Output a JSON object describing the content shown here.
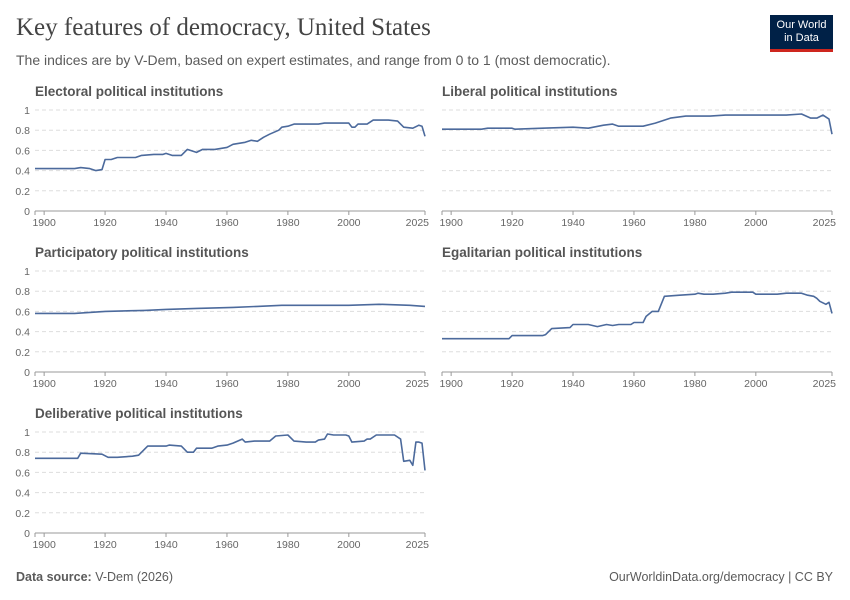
{
  "title": "Key features of democracy, United States",
  "subtitle": "The indices are by V-Dem, based on expert estimates, and range from 0 to 1 (most democratic).",
  "logo": {
    "line1": "Our World",
    "line2": "in Data"
  },
  "footer": {
    "source_label": "Data source:",
    "source": "V-Dem (2026)",
    "right": "OurWorldinData.org/democracy | CC BY"
  },
  "colors": {
    "line": "#4c6a9c",
    "grid": "#dddddd",
    "logo_bg": "#002147",
    "logo_accent": "#ce261e"
  },
  "chart_data": [
    {
      "type": "line",
      "title": "Electoral political institutions",
      "xlim": [
        1897,
        2025
      ],
      "ylim": [
        0,
        1
      ],
      "yticks": [
        "0",
        "0.2",
        "0.4",
        "0.6",
        "0.8",
        "1"
      ],
      "xticks": [
        "1900",
        "1920",
        "1940",
        "1960",
        "1980",
        "2000",
        "2025"
      ],
      "grid": "horizontal dashed",
      "show_y_labels": true,
      "x": [
        1897,
        1910,
        1912,
        1915,
        1917,
        1919,
        1920,
        1922,
        1924,
        1930,
        1932,
        1936,
        1939,
        1940,
        1942,
        1945,
        1947,
        1950,
        1952,
        1956,
        1960,
        1962,
        1966,
        1968,
        1970,
        1972,
        1974,
        1977,
        1978,
        1980,
        1982,
        1990,
        1992,
        2000,
        2001,
        2002,
        2003,
        2006,
        2008,
        2013,
        2016,
        2018,
        2021,
        2023,
        2024,
        2025
      ],
      "y": [
        0.42,
        0.42,
        0.43,
        0.42,
        0.4,
        0.41,
        0.51,
        0.51,
        0.53,
        0.53,
        0.55,
        0.56,
        0.56,
        0.57,
        0.55,
        0.55,
        0.61,
        0.58,
        0.61,
        0.61,
        0.63,
        0.66,
        0.68,
        0.7,
        0.69,
        0.73,
        0.76,
        0.8,
        0.83,
        0.84,
        0.86,
        0.86,
        0.87,
        0.87,
        0.83,
        0.83,
        0.86,
        0.86,
        0.9,
        0.9,
        0.89,
        0.83,
        0.82,
        0.85,
        0.84,
        0.74
      ]
    },
    {
      "type": "line",
      "title": "Liberal political institutions",
      "xlim": [
        1897,
        2025
      ],
      "ylim": [
        0,
        1
      ],
      "yticks": [
        "0",
        "0.2",
        "0.4",
        "0.6",
        "0.8",
        "1"
      ],
      "xticks": [
        "1900",
        "1920",
        "1940",
        "1960",
        "1980",
        "2000",
        "2025"
      ],
      "grid": "horizontal dashed",
      "show_y_labels": false,
      "x": [
        1897,
        1910,
        1912,
        1920,
        1921,
        1930,
        1940,
        1945,
        1950,
        1953,
        1955,
        1963,
        1967,
        1972,
        1977,
        1985,
        1990,
        2000,
        2010,
        2015,
        2018,
        2020,
        2022,
        2024,
        2025
      ],
      "y": [
        0.81,
        0.81,
        0.82,
        0.82,
        0.81,
        0.82,
        0.83,
        0.82,
        0.85,
        0.86,
        0.84,
        0.84,
        0.87,
        0.92,
        0.94,
        0.94,
        0.95,
        0.95,
        0.95,
        0.96,
        0.92,
        0.92,
        0.95,
        0.91,
        0.76
      ]
    },
    {
      "type": "line",
      "title": "Participatory political institutions",
      "xlim": [
        1897,
        2025
      ],
      "ylim": [
        0,
        1
      ],
      "yticks": [
        "0",
        "0.2",
        "0.4",
        "0.6",
        "0.8",
        "1"
      ],
      "xticks": [
        "1900",
        "1920",
        "1940",
        "1960",
        "1980",
        "2000",
        "2025"
      ],
      "grid": "horizontal dashed",
      "show_y_labels": true,
      "x": [
        1897,
        1910,
        1915,
        1920,
        1933,
        1940,
        1950,
        1962,
        1970,
        1978,
        2000,
        2010,
        2020,
        2025
      ],
      "y": [
        0.58,
        0.58,
        0.59,
        0.6,
        0.61,
        0.62,
        0.63,
        0.64,
        0.65,
        0.66,
        0.66,
        0.67,
        0.66,
        0.65
      ]
    },
    {
      "type": "line",
      "title": "Egalitarian political institutions",
      "xlim": [
        1897,
        2025
      ],
      "ylim": [
        0,
        1
      ],
      "yticks": [
        "0",
        "0.2",
        "0.4",
        "0.6",
        "0.8",
        "1"
      ],
      "xticks": [
        "1900",
        "1920",
        "1940",
        "1960",
        "1980",
        "2000",
        "2025"
      ],
      "grid": "horizontal dashed",
      "show_y_labels": false,
      "x": [
        1897,
        1919,
        1920,
        1930,
        1931,
        1933,
        1939,
        1940,
        1945,
        1948,
        1951,
        1953,
        1955,
        1959,
        1960,
        1963,
        1964,
        1966,
        1968,
        1970,
        1975,
        1980,
        1981,
        1983,
        1986,
        1990,
        1992,
        1999,
        2000,
        2007,
        2010,
        2015,
        2017,
        2019,
        2020,
        2021,
        2023,
        2024,
        2025
      ],
      "y": [
        0.33,
        0.33,
        0.36,
        0.36,
        0.37,
        0.43,
        0.44,
        0.47,
        0.47,
        0.45,
        0.47,
        0.46,
        0.47,
        0.47,
        0.49,
        0.49,
        0.55,
        0.6,
        0.6,
        0.75,
        0.76,
        0.77,
        0.78,
        0.77,
        0.77,
        0.78,
        0.79,
        0.79,
        0.77,
        0.77,
        0.78,
        0.78,
        0.76,
        0.75,
        0.73,
        0.7,
        0.67,
        0.69,
        0.58
      ]
    },
    {
      "type": "line",
      "title": "Deliberative political institutions",
      "xlim": [
        1897,
        2025
      ],
      "ylim": [
        0,
        1
      ],
      "yticks": [
        "0",
        "0.2",
        "0.4",
        "0.6",
        "0.8",
        "1"
      ],
      "xticks": [
        "1900",
        "1920",
        "1940",
        "1960",
        "1980",
        "2000",
        "2025"
      ],
      "grid": "horizontal dashed",
      "show_y_labels": true,
      "x": [
        1897,
        1911,
        1912,
        1919,
        1921,
        1924,
        1929,
        1931,
        1934,
        1940,
        1941,
        1945,
        1947,
        1949,
        1950,
        1955,
        1957,
        1960,
        1962,
        1965,
        1966,
        1969,
        1974,
        1976,
        1980,
        1982,
        1986,
        1989,
        1990,
        1992,
        1993,
        1995,
        1999,
        2000,
        2001,
        2005,
        2006,
        2007,
        2009,
        2015,
        2017,
        2018,
        2020,
        2021,
        2022,
        2023,
        2024,
        2025
      ],
      "y": [
        0.74,
        0.74,
        0.79,
        0.78,
        0.75,
        0.75,
        0.76,
        0.77,
        0.86,
        0.86,
        0.87,
        0.86,
        0.8,
        0.8,
        0.84,
        0.84,
        0.86,
        0.87,
        0.89,
        0.93,
        0.9,
        0.91,
        0.91,
        0.96,
        0.97,
        0.91,
        0.9,
        0.9,
        0.92,
        0.93,
        0.98,
        0.97,
        0.97,
        0.96,
        0.9,
        0.91,
        0.93,
        0.93,
        0.97,
        0.97,
        0.93,
        0.71,
        0.72,
        0.67,
        0.9,
        0.9,
        0.89,
        0.62
      ]
    }
  ]
}
